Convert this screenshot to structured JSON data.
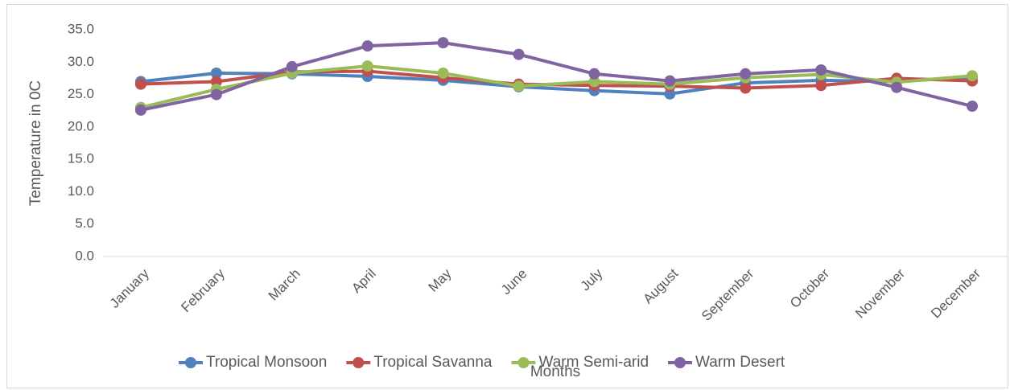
{
  "chart_data": {
    "type": "line",
    "y_label": "Temperature in 0C",
    "x_label": "Months",
    "categories": [
      "January",
      "February",
      "March",
      "April",
      "May",
      "June",
      "July",
      "August",
      "September",
      "October",
      "November",
      "December"
    ],
    "series": [
      {
        "name": "Tropical Monsoon",
        "color": "#4f81bd",
        "values": [
          27.0,
          28.3,
          28.2,
          27.8,
          27.2,
          26.2,
          25.6,
          25.1,
          26.8,
          27.2,
          27.0,
          27.7
        ]
      },
      {
        "name": "Tropical Savanna",
        "color": "#c0504d",
        "values": [
          26.6,
          27.0,
          28.5,
          28.6,
          27.6,
          26.6,
          26.4,
          26.3,
          26.0,
          26.4,
          27.5,
          27.1
        ]
      },
      {
        "name": "Warm Semi-arid",
        "color": "#9bbb59",
        "values": [
          23.0,
          25.8,
          28.3,
          29.4,
          28.3,
          26.3,
          27.0,
          26.6,
          27.6,
          28.1,
          26.9,
          27.9
        ]
      },
      {
        "name": "Warm Desert",
        "color": "#8064a2",
        "values": [
          22.6,
          25.0,
          29.3,
          32.5,
          33.0,
          31.2,
          28.2,
          27.1,
          28.2,
          28.8,
          26.1,
          23.2
        ]
      }
    ],
    "ylim": [
      0,
      35
    ],
    "yticks": [
      {
        "value": 0,
        "label": "0.0"
      },
      {
        "value": 5,
        "label": "5.0"
      },
      {
        "value": 10,
        "label": "10.0"
      },
      {
        "value": 15,
        "label": "15.0"
      },
      {
        "value": 20,
        "label": "20.0"
      },
      {
        "value": 25,
        "label": "25.0"
      },
      {
        "value": 30,
        "label": "30.0"
      },
      {
        "value": 35,
        "label": "35.0"
      }
    ],
    "grid": false,
    "legend": "bottom"
  }
}
